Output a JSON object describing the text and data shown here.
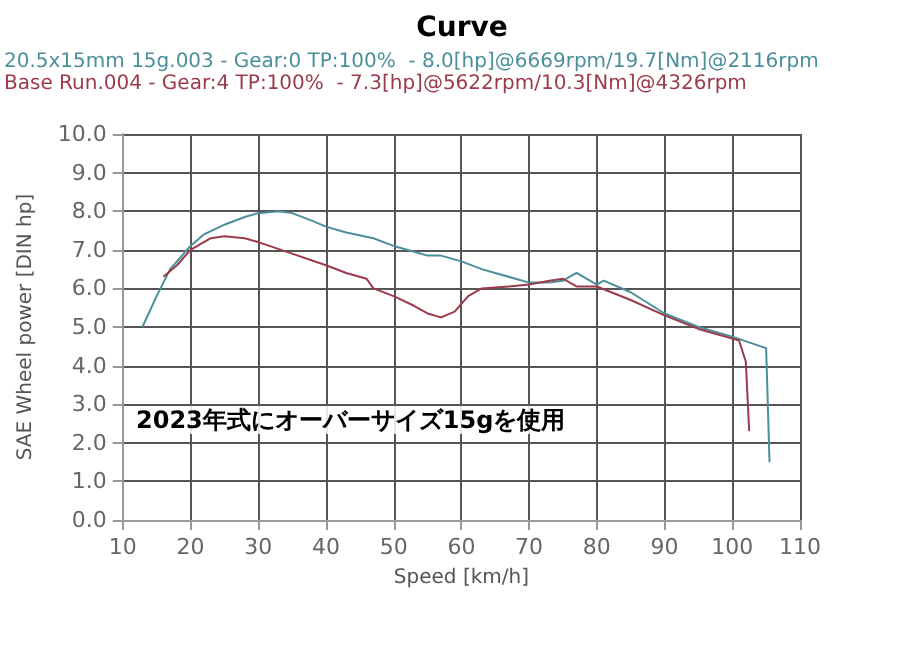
{
  "chart_data": {
    "type": "line",
    "title": "Curve",
    "xlabel": "Speed [km/h]",
    "ylabel": "SAE Wheel power [DIN hp]",
    "annotations": [
      "2023年式にオーバーサイズ15gを使用"
    ],
    "legend": "top left",
    "grid": true,
    "marker": "none",
    "line_style": "solid",
    "xlim": [
      10,
      110
    ],
    "xticks": [
      10,
      20,
      30,
      40,
      50,
      60,
      70,
      80,
      90,
      100,
      110
    ],
    "ylim": [
      0,
      10
    ],
    "yticks": [
      {
        "value": 0,
        "label": "0.0"
      },
      {
        "value": 1,
        "label": "1.0"
      },
      {
        "value": 2,
        "label": "2.0"
      },
      {
        "value": 3,
        "label": "3.0"
      },
      {
        "value": 4,
        "label": "4.0"
      },
      {
        "value": 5,
        "label": "5.0"
      },
      {
        "value": 6,
        "label": "6.0"
      },
      {
        "value": 7,
        "label": "7.0"
      },
      {
        "value": 8,
        "label": "8.0"
      },
      {
        "value": 9,
        "label": "9.0"
      },
      {
        "value": 10,
        "label": "10.0"
      }
    ],
    "series": [
      {
        "name": "20.5x15mm 15g.003 - Gear:0 TP:100%  - 8.0[hp]@6669rpm/19.7[Nm]@2116rpm",
        "color": "#4a8f9a",
        "x": [
          12.9,
          15,
          17,
          20,
          22,
          25,
          28,
          30,
          33,
          35,
          38,
          40,
          43,
          47,
          50,
          53,
          55,
          57,
          60,
          63,
          65,
          68,
          70,
          73,
          75,
          77,
          80,
          81,
          85,
          90,
          95,
          100,
          105,
          105.5
        ],
        "values": [
          5.0,
          5.8,
          6.5,
          7.1,
          7.4,
          7.65,
          7.85,
          7.95,
          8.0,
          7.95,
          7.75,
          7.6,
          7.45,
          7.3,
          7.1,
          6.95,
          6.85,
          6.85,
          6.7,
          6.5,
          6.4,
          6.25,
          6.15,
          6.15,
          6.2,
          6.4,
          6.1,
          6.2,
          5.9,
          5.35,
          5.0,
          4.75,
          4.45,
          1.5
        ]
      },
      {
        "name": "Base Run.004 - Gear:4 TP:100%  - 7.3[hp]@5622rpm/10.3[Nm]@4326rpm",
        "color": "#9b3a4a",
        "x": [
          16,
          18,
          20,
          23,
          25,
          28,
          30,
          35,
          40,
          43,
          46,
          47,
          50,
          53,
          55,
          57,
          59,
          61,
          63,
          67,
          70,
          73,
          75,
          77,
          80,
          85,
          90,
          95,
          100,
          101,
          102,
          102.5
        ],
        "values": [
          6.3,
          6.6,
          7.0,
          7.3,
          7.35,
          7.3,
          7.2,
          6.9,
          6.6,
          6.4,
          6.25,
          6.0,
          5.8,
          5.55,
          5.35,
          5.25,
          5.4,
          5.8,
          6.0,
          6.05,
          6.1,
          6.2,
          6.25,
          6.05,
          6.05,
          5.7,
          5.3,
          4.95,
          4.7,
          4.65,
          4.1,
          2.3
        ]
      }
    ]
  }
}
